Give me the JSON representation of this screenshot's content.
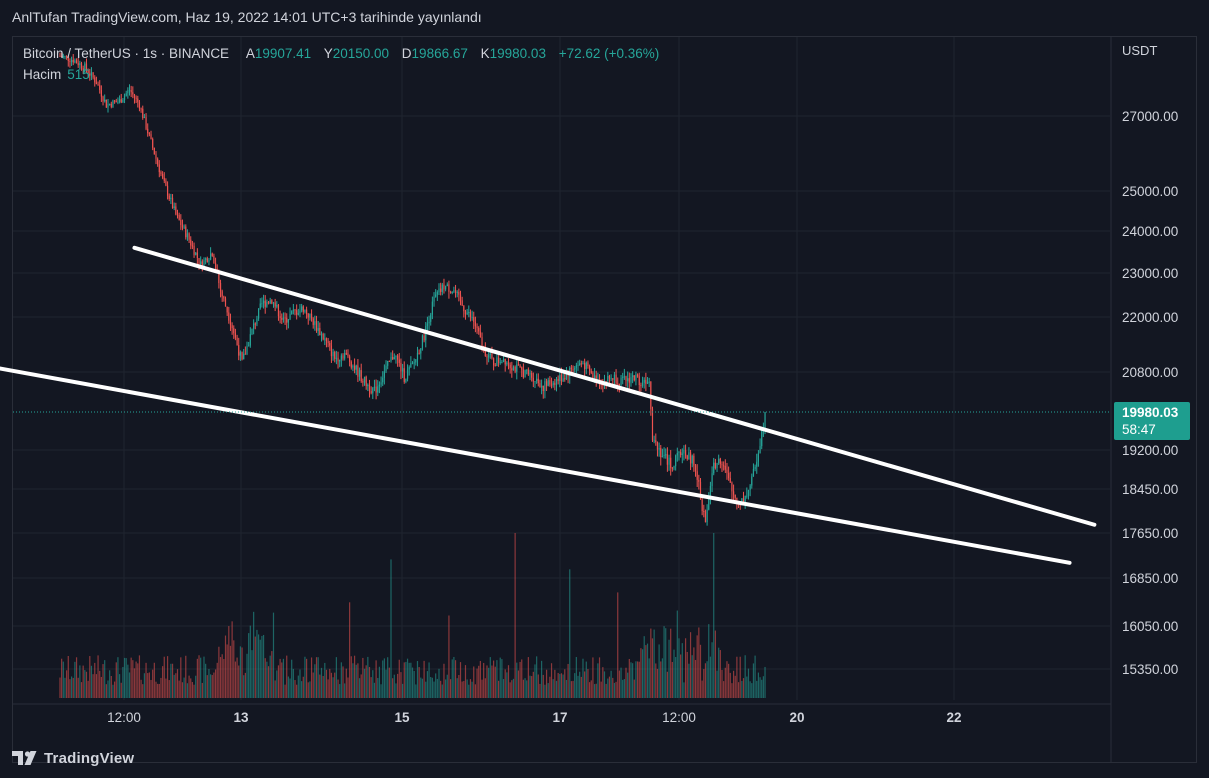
{
  "header": {
    "published": "AnlTufan TradingView.com, Haz 19, 2022 14:01 UTC+3 tarihinde yayınlandı"
  },
  "legend": {
    "symbol": "Bitcoin / TetherUS · 1s · BINANCE",
    "open_label": "A",
    "open": "19907.41",
    "high_label": "Y",
    "high": "20150.00",
    "low_label": "D",
    "low": "19866.67",
    "close_label": "K",
    "close": "19980.03",
    "change": "+72.62 (+0.36%)",
    "volume_label": "Hacim",
    "volume": "515"
  },
  "price_badge": {
    "price": "19980.03",
    "countdown": "58:47"
  },
  "footer": {
    "brand": "TradingView"
  },
  "colors": {
    "background": "#131722",
    "up": "#26a69a",
    "down": "#ef5350",
    "trendline": "#ffffff",
    "badge": "#1e9e8f"
  },
  "chart_data": {
    "type": "candlestick",
    "symbol": "BTCUSDT",
    "y_unit": "USDT",
    "y_ticks": [
      27000,
      25000,
      24000,
      23000,
      22000,
      20800,
      19200,
      18450,
      17650,
      16850,
      16050,
      15350
    ],
    "x_ticks": [
      "12:00",
      "13",
      "15",
      "17",
      "12:00",
      "20",
      "22"
    ],
    "last_price": 19980.03,
    "price_path": [
      [
        0,
        28600
      ],
      [
        8,
        28500
      ],
      [
        15,
        28300
      ],
      [
        22,
        27900
      ],
      [
        28,
        27300
      ],
      [
        36,
        27400
      ],
      [
        42,
        27700
      ],
      [
        48,
        27300
      ],
      [
        55,
        26300
      ],
      [
        62,
        25300
      ],
      [
        70,
        24400
      ],
      [
        78,
        23800
      ],
      [
        85,
        23200
      ],
      [
        92,
        23500
      ],
      [
        97,
        22600
      ],
      [
        104,
        21800
      ],
      [
        110,
        21000
      ],
      [
        116,
        21700
      ],
      [
        122,
        22300
      ],
      [
        128,
        22400
      ],
      [
        135,
        21900
      ],
      [
        141,
        22100
      ],
      [
        147,
        22200
      ],
      [
        153,
        21900
      ],
      [
        160,
        21500
      ],
      [
        166,
        21100
      ],
      [
        172,
        21200
      ],
      [
        178,
        20900
      ],
      [
        184,
        20600
      ],
      [
        190,
        20400
      ],
      [
        196,
        20800
      ],
      [
        202,
        21200
      ],
      [
        208,
        20700
      ],
      [
        214,
        21000
      ],
      [
        220,
        21600
      ],
      [
        226,
        22400
      ],
      [
        232,
        22700
      ],
      [
        238,
        22600
      ],
      [
        244,
        22200
      ],
      [
        250,
        21900
      ],
      [
        256,
        21300
      ],
      [
        262,
        21000
      ],
      [
        268,
        21100
      ],
      [
        274,
        20900
      ],
      [
        280,
        20800
      ],
      [
        286,
        20700
      ],
      [
        292,
        20500
      ],
      [
        298,
        20600
      ],
      [
        304,
        20700
      ],
      [
        310,
        20900
      ],
      [
        316,
        21000
      ],
      [
        322,
        20700
      ],
      [
        328,
        20600
      ],
      [
        334,
        20700
      ],
      [
        340,
        20600
      ],
      [
        346,
        20700
      ],
      [
        352,
        20600
      ],
      [
        356,
        20700
      ],
      [
        358,
        19500
      ],
      [
        364,
        19100
      ],
      [
        370,
        18900
      ],
      [
        376,
        19200
      ],
      [
        382,
        19000
      ],
      [
        386,
        18500
      ],
      [
        390,
        17800
      ],
      [
        394,
        18800
      ],
      [
        398,
        19100
      ],
      [
        402,
        18800
      ],
      [
        406,
        18400
      ],
      [
        410,
        18200
      ],
      [
        414,
        18300
      ],
      [
        418,
        18600
      ],
      [
        422,
        19200
      ],
      [
        426,
        19900
      ]
    ],
    "trendlines": [
      {
        "name": "upper",
        "from": [
          45,
          23600
        ],
        "to": [
          625,
          17800
        ]
      },
      {
        "name": "lower",
        "from": [
          -55,
          21000
        ],
        "to": [
          610,
          17120
        ]
      }
    ],
    "volume_scale_max": 100
  }
}
